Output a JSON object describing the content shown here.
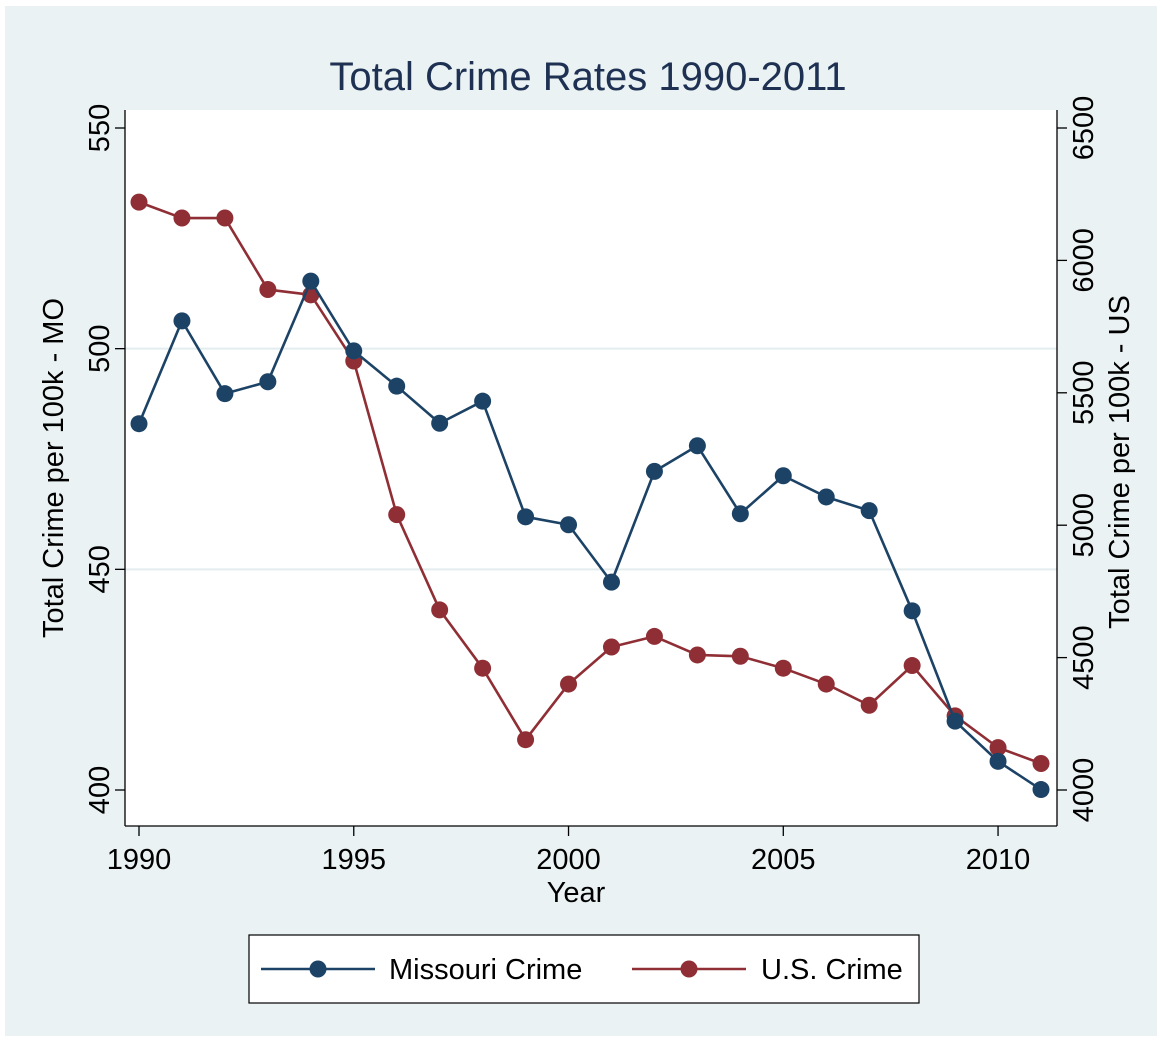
{
  "chart_data": {
    "type": "line",
    "title": "Total Crime Rates 1990-2011",
    "xlabel": "Year",
    "ylabel_left": "Total Crime per 100k - MO",
    "ylabel_right": "Total Crime per 100k - US",
    "x": [
      1990,
      1991,
      1992,
      1993,
      1994,
      1995,
      1996,
      1997,
      1998,
      1999,
      2000,
      2001,
      2002,
      2003,
      2004,
      2005,
      2006,
      2007,
      2008,
      2009,
      2010,
      2011
    ],
    "xlim": [
      1990,
      2011
    ],
    "x_ticks": [
      1990,
      1995,
      2000,
      2005,
      2010
    ],
    "ylim_left": [
      400,
      550
    ],
    "y_ticks_left": [
      400,
      450,
      500,
      550
    ],
    "ylim_right": [
      4000,
      6500
    ],
    "y_ticks_right": [
      4000,
      4500,
      5000,
      5500,
      6000,
      6500
    ],
    "grid": "horizontal",
    "legend_position": "bottom",
    "series": [
      {
        "name": "Missouri Crime",
        "axis": "left",
        "color": "#1c4366",
        "values": [
          483.0,
          506.3,
          489.8,
          492.5,
          515.3,
          499.5,
          491.5,
          483.1,
          488.1,
          461.9,
          460.1,
          447.1,
          472.2,
          478.0,
          462.6,
          471.2,
          466.4,
          463.3,
          440.6,
          415.6,
          406.5,
          400.1
        ]
      },
      {
        "name": "U.S. Crime",
        "axis": "right",
        "color": "#8f2f35",
        "values": [
          6220,
          6160,
          6160,
          5890,
          5870,
          5620,
          5040,
          4680,
          4460,
          4190,
          4400,
          4540,
          4580,
          4510,
          4505,
          4460,
          4400,
          4320,
          4470,
          4280,
          4160,
          4100
        ]
      }
    ]
  }
}
